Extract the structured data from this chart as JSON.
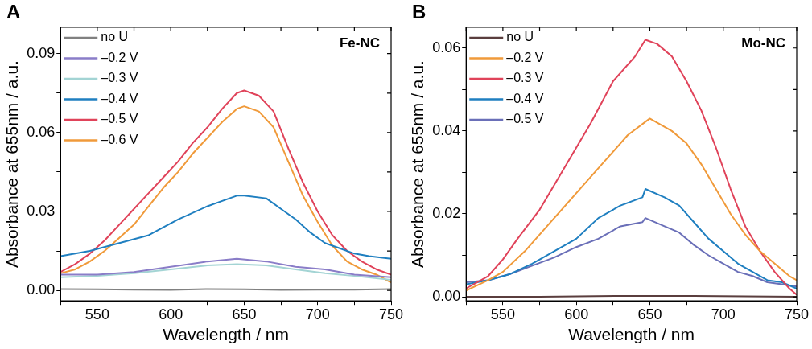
{
  "chart_data": [
    {
      "type": "line",
      "title": "A",
      "annotations": [
        "Fe-NC"
      ],
      "xlabel": "Wavelength / nm",
      "ylabel": "Absorbance at 655nm / a.u.",
      "xlim": [
        525,
        750
      ],
      "xticks": [
        {
          "value": 525,
          "label": null
        },
        550,
        {
          "value": 575,
          "label": null
        },
        600,
        {
          "value": 625,
          "label": null
        },
        650,
        {
          "value": 675,
          "label": null
        },
        700,
        {
          "value": 725,
          "label": null
        },
        750
      ],
      "ylim": [
        -0.004,
        0.1
      ],
      "yticks": [
        {
          "value": 0,
          "label": "0.00"
        },
        {
          "value": 0.015,
          "label": null
        },
        {
          "value": 0.03,
          "label": "0.03"
        },
        {
          "value": 0.045,
          "label": null
        },
        {
          "value": 0.06,
          "label": "0.06"
        },
        {
          "value": 0.075,
          "label": null
        },
        {
          "value": 0.09,
          "label": "0.09"
        }
      ],
      "grid": false,
      "legend": "top left",
      "marker": "none",
      "line_style": "solid",
      "series": [
        {
          "name": "no U",
          "color": "#808080",
          "x": [
            525,
            550,
            575,
            600,
            625,
            650,
            675,
            700,
            725,
            750
          ],
          "values": [
            0.0005,
            0.0004,
            0.0003,
            0.0002,
            0.0005,
            0.0004,
            0.0002,
            0.0003,
            0.0003,
            0.0005
          ]
        },
        {
          "name": "–0.2 V",
          "color": "#8a7dc8",
          "x": [
            525,
            550,
            575,
            600,
            625,
            645,
            665,
            685,
            705,
            725,
            750
          ],
          "values": [
            0.006,
            0.006,
            0.007,
            0.009,
            0.011,
            0.012,
            0.011,
            0.009,
            0.008,
            0.006,
            0.005
          ]
        },
        {
          "name": "–0.3 V",
          "color": "#a3d4d4",
          "x": [
            525,
            550,
            575,
            600,
            625,
            645,
            665,
            685,
            705,
            725,
            750
          ],
          "values": [
            0.005,
            0.0055,
            0.0065,
            0.008,
            0.0095,
            0.01,
            0.0095,
            0.008,
            0.0065,
            0.0055,
            0.004
          ]
        },
        {
          "name": "–0.4 V",
          "color": "#1f7fc0",
          "x": [
            525,
            545,
            565,
            585,
            605,
            625,
            645,
            650,
            665,
            675,
            685,
            695,
            705,
            715,
            725,
            735,
            750
          ],
          "values": [
            0.013,
            0.015,
            0.018,
            0.021,
            0.027,
            0.032,
            0.036,
            0.036,
            0.035,
            0.031,
            0.027,
            0.022,
            0.018,
            0.016,
            0.014,
            0.013,
            0.012
          ]
        },
        {
          "name": "–0.5 V",
          "color": "#e0435a",
          "x": [
            525,
            535,
            545,
            555,
            565,
            575,
            585,
            595,
            605,
            615,
            625,
            635,
            645,
            650,
            660,
            670,
            680,
            690,
            700,
            710,
            720,
            730,
            740,
            750
          ],
          "values": [
            0.007,
            0.01,
            0.014,
            0.019,
            0.025,
            0.031,
            0.037,
            0.043,
            0.049,
            0.056,
            0.062,
            0.069,
            0.075,
            0.076,
            0.074,
            0.068,
            0.054,
            0.041,
            0.03,
            0.021,
            0.015,
            0.011,
            0.008,
            0.006
          ]
        },
        {
          "name": "–0.6 V",
          "color": "#f09a3a",
          "x": [
            525,
            535,
            545,
            555,
            565,
            575,
            585,
            595,
            605,
            615,
            625,
            635,
            645,
            650,
            660,
            670,
            680,
            690,
            700,
            710,
            720,
            730,
            740,
            750
          ],
          "values": [
            0.0065,
            0.008,
            0.011,
            0.015,
            0.02,
            0.025,
            0.032,
            0.039,
            0.045,
            0.052,
            0.058,
            0.064,
            0.069,
            0.07,
            0.068,
            0.062,
            0.049,
            0.036,
            0.026,
            0.017,
            0.011,
            0.008,
            0.006,
            0.003
          ]
        }
      ]
    },
    {
      "type": "line",
      "title": "B",
      "annotations": [
        "Mo-NC"
      ],
      "xlabel": "Wavelength / nm",
      "ylabel": "Absorbance at 655nm / a.u.",
      "xlim": [
        525,
        750
      ],
      "xticks": [
        {
          "value": 525,
          "label": null
        },
        550,
        {
          "value": 575,
          "label": null
        },
        600,
        {
          "value": 625,
          "label": null
        },
        650,
        {
          "value": 675,
          "label": null
        },
        700,
        {
          "value": 725,
          "label": null
        },
        750
      ],
      "ylim": [
        -0.001,
        0.065
      ],
      "yticks": [
        {
          "value": 0,
          "label": "0.00"
        },
        {
          "value": 0.01,
          "label": null
        },
        {
          "value": 0.02,
          "label": "0.02"
        },
        {
          "value": 0.03,
          "label": null
        },
        {
          "value": 0.04,
          "label": "0.04"
        },
        {
          "value": 0.05,
          "label": null
        },
        {
          "value": 0.06,
          "label": "0.06"
        }
      ],
      "grid": false,
      "legend": "top left",
      "marker": "none",
      "line_style": "solid",
      "series": [
        {
          "name": "no U",
          "color": "#5a3e3e",
          "x": [
            525,
            575,
            630,
            680,
            750
          ],
          "values": [
            0,
            0,
            0.0002,
            0.0002,
            0
          ]
        },
        {
          "name": "–0.2 V",
          "color": "#f09a3a",
          "x": [
            525,
            540,
            550,
            565,
            580,
            600,
            620,
            635,
            650,
            665,
            675,
            685,
            695,
            705,
            715,
            725,
            735,
            745,
            750
          ],
          "values": [
            0.0015,
            0.004,
            0.006,
            0.011,
            0.017,
            0.025,
            0.033,
            0.039,
            0.043,
            0.04,
            0.037,
            0.032,
            0.026,
            0.02,
            0.015,
            0.011,
            0.008,
            0.005,
            0.004
          ]
        },
        {
          "name": "–0.3 V",
          "color": "#e0435a",
          "x": [
            525,
            540,
            550,
            560,
            575,
            590,
            600,
            610,
            625,
            640,
            647,
            655,
            665,
            675,
            685,
            695,
            705,
            715,
            725,
            735,
            745,
            750
          ],
          "values": [
            0.002,
            0.005,
            0.009,
            0.014,
            0.021,
            0.03,
            0.036,
            0.042,
            0.052,
            0.058,
            0.062,
            0.061,
            0.058,
            0.052,
            0.045,
            0.036,
            0.026,
            0.017,
            0.011,
            0.006,
            0.002,
            0.0005
          ]
        },
        {
          "name": "–0.4 V",
          "color": "#1f7fc0",
          "x": [
            525,
            540,
            555,
            570,
            585,
            600,
            615,
            630,
            645,
            647,
            660,
            670,
            680,
            690,
            700,
            710,
            720,
            730,
            740,
            750
          ],
          "values": [
            0.003,
            0.004,
            0.0055,
            0.008,
            0.011,
            0.014,
            0.019,
            0.022,
            0.024,
            0.026,
            0.024,
            0.022,
            0.018,
            0.014,
            0.011,
            0.008,
            0.006,
            0.004,
            0.0035,
            0.002
          ]
        },
        {
          "name": "–0.5 V",
          "color": "#6a6fb8",
          "x": [
            525,
            540,
            555,
            570,
            585,
            600,
            615,
            630,
            645,
            647,
            660,
            670,
            680,
            690,
            700,
            710,
            720,
            730,
            740,
            750
          ],
          "values": [
            0.0035,
            0.004,
            0.0055,
            0.0075,
            0.0095,
            0.012,
            0.014,
            0.017,
            0.018,
            0.019,
            0.017,
            0.0155,
            0.0125,
            0.01,
            0.008,
            0.006,
            0.005,
            0.0035,
            0.003,
            0.0025
          ]
        }
      ]
    }
  ]
}
